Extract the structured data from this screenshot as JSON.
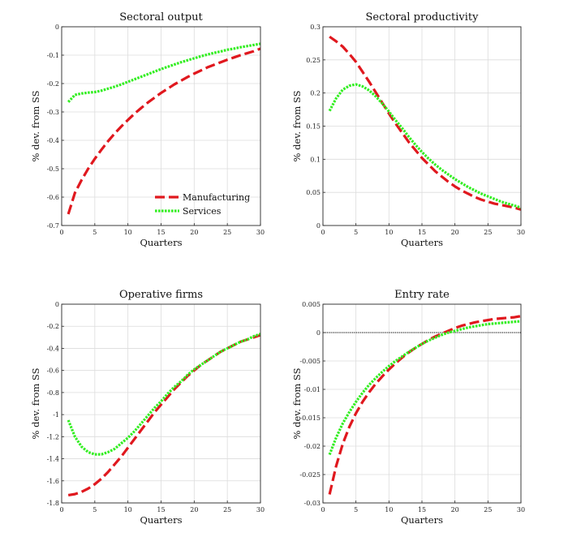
{
  "colors": {
    "manufacturing": "#e0181e",
    "services": "#33ee22",
    "grid": "#dcdcdc",
    "axis": "#262626"
  },
  "legend": {
    "items": [
      "Manufacturing",
      "Services"
    ],
    "placement": "inside-bottom-right",
    "panel": 0
  },
  "chart_data": [
    {
      "type": "line",
      "title": "Sectoral output",
      "xlabel": "Quarters",
      "ylabel": "% dev. from SS",
      "xlim": [
        0,
        30
      ],
      "ylim": [
        -0.7,
        0
      ],
      "xticks": [
        0,
        5,
        10,
        15,
        20,
        25,
        30
      ],
      "xtick_labels": [
        "0",
        "5",
        "10",
        "15",
        "20",
        "25",
        "30"
      ],
      "yticks": [
        -0.7,
        -0.6,
        -0.5,
        -0.4,
        -0.3,
        -0.2,
        -0.1,
        0
      ],
      "ytick_labels": [
        "-0.7",
        "-0.6",
        "-0.5",
        "-0.4",
        "-0.3",
        "-0.2",
        "-0.1",
        "0"
      ],
      "grid": true,
      "x": [
        1,
        2,
        3,
        4,
        5,
        6,
        7,
        8,
        9,
        10,
        11,
        12,
        13,
        14,
        15,
        16,
        17,
        18,
        19,
        20,
        21,
        22,
        23,
        24,
        25,
        26,
        27,
        28,
        29,
        30
      ],
      "series": [
        {
          "name": "Manufacturing",
          "values": [
            -0.66,
            -0.585,
            -0.54,
            -0.5,
            -0.465,
            -0.433,
            -0.403,
            -0.376,
            -0.351,
            -0.328,
            -0.306,
            -0.286,
            -0.267,
            -0.25,
            -0.233,
            -0.218,
            -0.203,
            -0.19,
            -0.177,
            -0.165,
            -0.154,
            -0.143,
            -0.134,
            -0.125,
            -0.116,
            -0.108,
            -0.1,
            -0.093,
            -0.086,
            -0.077
          ]
        },
        {
          "name": "Services",
          "values": [
            -0.265,
            -0.24,
            -0.235,
            -0.232,
            -0.23,
            -0.225,
            -0.218,
            -0.211,
            -0.203,
            -0.194,
            -0.185,
            -0.176,
            -0.167,
            -0.158,
            -0.149,
            -0.141,
            -0.133,
            -0.125,
            -0.118,
            -0.111,
            -0.104,
            -0.098,
            -0.092,
            -0.087,
            -0.081,
            -0.077,
            -0.072,
            -0.068,
            -0.064,
            -0.06
          ]
        }
      ]
    },
    {
      "type": "line",
      "title": "Sectoral productivity",
      "xlabel": "Quarters",
      "ylabel": "% dev. from SS",
      "xlim": [
        0,
        30
      ],
      "ylim": [
        0,
        0.3
      ],
      "xticks": [
        0,
        5,
        10,
        15,
        20,
        25,
        30
      ],
      "xtick_labels": [
        "0",
        "5",
        "10",
        "15",
        "20",
        "25",
        "30"
      ],
      "yticks": [
        0,
        0.05,
        0.1,
        0.15,
        0.2,
        0.25,
        0.3
      ],
      "ytick_labels": [
        "0",
        "0.05",
        "0.1",
        "0.15",
        "0.2",
        "0.25",
        "0.3"
      ],
      "grid": true,
      "x": [
        1,
        2,
        3,
        4,
        5,
        6,
        7,
        8,
        9,
        10,
        11,
        12,
        13,
        14,
        15,
        16,
        17,
        18,
        19,
        20,
        21,
        22,
        23,
        24,
        25,
        26,
        27,
        28,
        29,
        30
      ],
      "series": [
        {
          "name": "Manufacturing",
          "values": [
            0.285,
            0.278,
            0.27,
            0.259,
            0.247,
            0.232,
            0.217,
            0.201,
            0.185,
            0.169,
            0.154,
            0.14,
            0.126,
            0.114,
            0.102,
            0.092,
            0.082,
            0.074,
            0.066,
            0.059,
            0.053,
            0.048,
            0.043,
            0.039,
            0.036,
            0.033,
            0.031,
            0.029,
            0.027,
            0.024
          ]
        },
        {
          "name": "Services",
          "values": [
            0.173,
            0.192,
            0.205,
            0.211,
            0.213,
            0.21,
            0.204,
            0.195,
            0.184,
            0.172,
            0.159,
            0.147,
            0.134,
            0.122,
            0.111,
            0.101,
            0.092,
            0.084,
            0.077,
            0.07,
            0.064,
            0.058,
            0.053,
            0.048,
            0.044,
            0.04,
            0.036,
            0.033,
            0.03,
            0.027
          ]
        }
      ]
    },
    {
      "type": "line",
      "title": "Operative firms",
      "xlabel": "Quarters",
      "ylabel": "% dev. from SS",
      "xlim": [
        0,
        30
      ],
      "ylim": [
        -1.8,
        0
      ],
      "xticks": [
        0,
        5,
        10,
        15,
        20,
        25,
        30
      ],
      "xtick_labels": [
        "0",
        "5",
        "10",
        "15",
        "20",
        "25",
        "30"
      ],
      "yticks": [
        -1.8,
        -1.6,
        -1.4,
        -1.2,
        -1,
        -0.8,
        -0.6,
        -0.4,
        -0.2,
        0
      ],
      "ytick_labels": [
        "-1.8",
        "-1.6",
        "-1.4",
        "-1.2",
        "-1",
        "-0.8",
        "-0.6",
        "-0.4",
        "-0.2",
        "0"
      ],
      "grid": true,
      "x": [
        1,
        2,
        3,
        4,
        5,
        6,
        7,
        8,
        9,
        10,
        11,
        12,
        13,
        14,
        15,
        16,
        17,
        18,
        19,
        20,
        21,
        22,
        23,
        24,
        25,
        26,
        27,
        28,
        29,
        30
      ],
      "series": [
        {
          "name": "Manufacturing",
          "values": [
            -1.73,
            -1.72,
            -1.7,
            -1.67,
            -1.63,
            -1.58,
            -1.52,
            -1.45,
            -1.38,
            -1.3,
            -1.22,
            -1.14,
            -1.06,
            -0.98,
            -0.91,
            -0.84,
            -0.77,
            -0.71,
            -0.65,
            -0.6,
            -0.55,
            -0.51,
            -0.47,
            -0.43,
            -0.4,
            -0.37,
            -0.34,
            -0.32,
            -0.3,
            -0.28
          ]
        },
        {
          "name": "Services",
          "values": [
            -1.05,
            -1.2,
            -1.29,
            -1.34,
            -1.36,
            -1.36,
            -1.34,
            -1.31,
            -1.26,
            -1.21,
            -1.15,
            -1.08,
            -1.01,
            -0.94,
            -0.88,
            -0.81,
            -0.75,
            -0.7,
            -0.64,
            -0.59,
            -0.55,
            -0.51,
            -0.47,
            -0.43,
            -0.4,
            -0.37,
            -0.34,
            -0.32,
            -0.29,
            -0.27
          ]
        }
      ]
    },
    {
      "type": "line",
      "title": "Entry rate",
      "xlabel": "Quarters",
      "ylabel": "% dev. from SS",
      "xlim": [
        0,
        30
      ],
      "ylim": [
        -0.03,
        0.005
      ],
      "xticks": [
        0,
        5,
        10,
        15,
        20,
        25,
        30
      ],
      "xtick_labels": [
        "0",
        "5",
        "10",
        "15",
        "20",
        "25",
        "30"
      ],
      "yticks": [
        -0.03,
        -0.025,
        -0.02,
        -0.015,
        -0.01,
        -0.005,
        0,
        0.005
      ],
      "ytick_labels": [
        "-0.03",
        "-0.025",
        "-0.02",
        "-0.015",
        "-0.01",
        "-0.005",
        "0",
        "0.005"
      ],
      "grid": true,
      "zero_line": true,
      "x": [
        1,
        2,
        3,
        4,
        5,
        6,
        7,
        8,
        9,
        10,
        11,
        12,
        13,
        14,
        15,
        16,
        17,
        18,
        19,
        20,
        21,
        22,
        23,
        24,
        25,
        26,
        27,
        28,
        29,
        30
      ],
      "series": [
        {
          "name": "Manufacturing",
          "values": [
            -0.0285,
            -0.0235,
            -0.0196,
            -0.0166,
            -0.0142,
            -0.0122,
            -0.0105,
            -0.009,
            -0.0077,
            -0.0065,
            -0.0054,
            -0.0044,
            -0.0035,
            -0.0027,
            -0.002,
            -0.0013,
            -0.0007,
            -0.0002,
            0.0003,
            0.0008,
            0.0012,
            0.0015,
            0.0018,
            0.002,
            0.0022,
            0.0024,
            0.0025,
            0.0026,
            0.0027,
            0.0029
          ]
        },
        {
          "name": "Services",
          "values": [
            -0.0215,
            -0.0185,
            -0.016,
            -0.014,
            -0.0122,
            -0.0106,
            -0.0092,
            -0.008,
            -0.0069,
            -0.0059,
            -0.005,
            -0.0042,
            -0.0034,
            -0.0027,
            -0.002,
            -0.0014,
            -0.0009,
            -0.0004,
            0.0,
            0.0003,
            0.0006,
            0.0009,
            0.0011,
            0.0013,
            0.0015,
            0.0016,
            0.0017,
            0.0018,
            0.0019,
            0.002
          ]
        }
      ]
    }
  ]
}
